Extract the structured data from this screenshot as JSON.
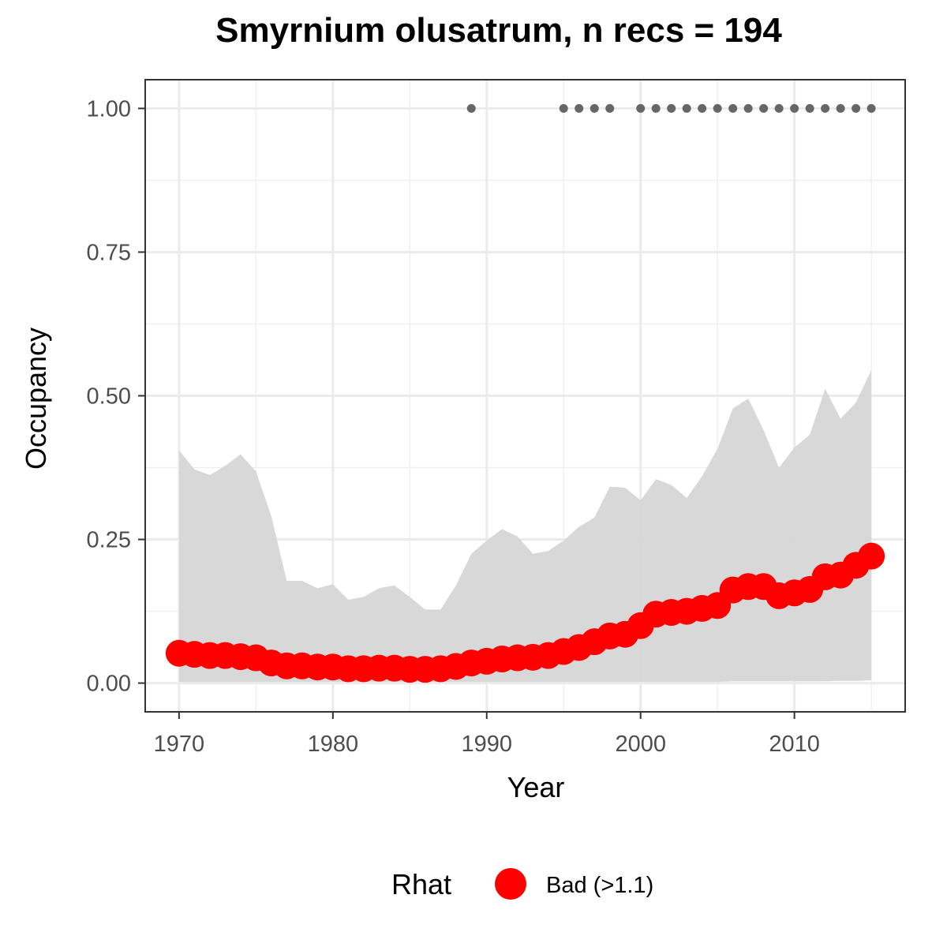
{
  "chart_data": {
    "type": "line",
    "title": "Smyrnium olusatrum, n recs = 194",
    "xlabel": "Year",
    "ylabel": "Occupancy",
    "xlim": [
      1967.8,
      2017.2
    ],
    "ylim": [
      -0.05,
      1.05
    ],
    "x_ticks": [
      1970,
      1980,
      1990,
      2000,
      2010
    ],
    "x_tick_labels": [
      "1970",
      "1980",
      "1990",
      "2000",
      "2010"
    ],
    "y_ticks": [
      0,
      0.25,
      0.5,
      0.75,
      1.0
    ],
    "y_tick_labels": [
      "0.00",
      "0.25",
      "0.50",
      "0.75",
      "1.00"
    ],
    "grid": true,
    "legend": {
      "title": "Rhat",
      "position": "bottom",
      "entries": [
        {
          "label": "Bad (>1.1)",
          "color": "#ff0000"
        }
      ]
    },
    "colors": {
      "mean": "#ff0000",
      "ribbon": "#d6d6d6",
      "detections": "#666666"
    },
    "years": [
      1970,
      1971,
      1972,
      1973,
      1974,
      1975,
      1976,
      1977,
      1978,
      1979,
      1980,
      1981,
      1982,
      1983,
      1984,
      1985,
      1986,
      1987,
      1988,
      1989,
      1990,
      1991,
      1992,
      1993,
      1994,
      1995,
      1996,
      1997,
      1998,
      1999,
      2000,
      2001,
      2002,
      2003,
      2004,
      2005,
      2006,
      2007,
      2008,
      2009,
      2010,
      2011,
      2012,
      2013,
      2014,
      2015
    ],
    "series": [
      {
        "name": "Bad (>1.1)",
        "values": [
          0.052,
          0.05,
          0.048,
          0.048,
          0.046,
          0.044,
          0.035,
          0.03,
          0.03,
          0.028,
          0.028,
          0.025,
          0.025,
          0.026,
          0.026,
          0.024,
          0.024,
          0.025,
          0.029,
          0.035,
          0.038,
          0.042,
          0.044,
          0.045,
          0.048,
          0.055,
          0.062,
          0.072,
          0.082,
          0.085,
          0.1,
          0.12,
          0.123,
          0.125,
          0.13,
          0.135,
          0.162,
          0.168,
          0.168,
          0.152,
          0.157,
          0.163,
          0.185,
          0.188,
          0.205,
          0.221
        ]
      }
    ],
    "ribbon": {
      "upper": [
        0.405,
        0.372,
        0.362,
        0.378,
        0.398,
        0.368,
        0.29,
        0.178,
        0.178,
        0.165,
        0.172,
        0.145,
        0.15,
        0.165,
        0.17,
        0.15,
        0.128,
        0.128,
        0.17,
        0.225,
        0.248,
        0.268,
        0.255,
        0.225,
        0.23,
        0.248,
        0.272,
        0.288,
        0.342,
        0.34,
        0.318,
        0.355,
        0.345,
        0.322,
        0.36,
        0.408,
        0.478,
        0.495,
        0.44,
        0.375,
        0.41,
        0.432,
        0.512,
        0.46,
        0.488,
        0.545
      ],
      "lower": [
        0.002,
        0.002,
        0.002,
        0.002,
        0.002,
        0.002,
        0.002,
        0.002,
        0.002,
        0.002,
        0.002,
        0.002,
        0.002,
        0.002,
        0.002,
        0.002,
        0.002,
        0.002,
        0.002,
        0.002,
        0.002,
        0.002,
        0.002,
        0.002,
        0.002,
        0.002,
        0.002,
        0.002,
        0.002,
        0.002,
        0.002,
        0.002,
        0.002,
        0.002,
        0.002,
        0.002,
        0.003,
        0.003,
        0.003,
        0.003,
        0.003,
        0.003,
        0.003,
        0.004,
        0.004,
        0.005
      ]
    },
    "detections": {
      "y": 1.0,
      "years": [
        1989,
        1995,
        1996,
        1997,
        1998,
        2000,
        2001,
        2002,
        2003,
        2004,
        2005,
        2006,
        2007,
        2008,
        2009,
        2010,
        2011,
        2012,
        2013,
        2014,
        2015
      ]
    }
  }
}
